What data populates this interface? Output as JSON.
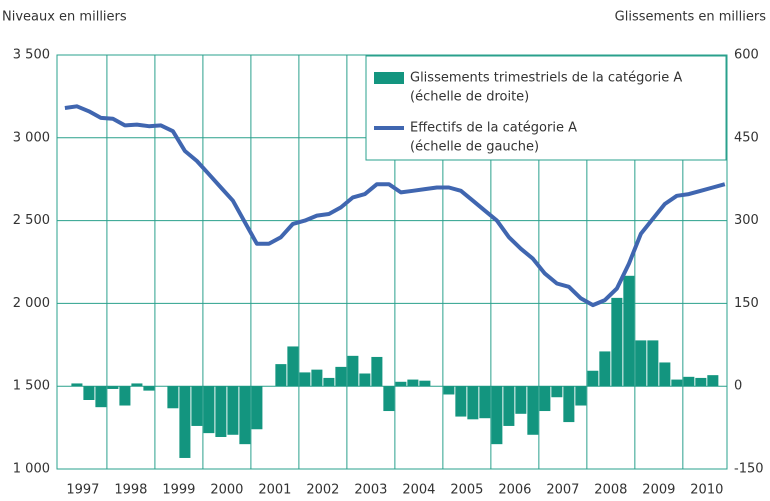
{
  "chart_data": {
    "type": "bar_line",
    "left_axis_label": "Niveaux en milliers",
    "right_axis_label": "Glissements en milliers",
    "xlim": [
      1996.96,
      2010.92
    ],
    "xticks": [
      1997,
      1998,
      1999,
      2000,
      2001,
      2002,
      2003,
      2004,
      2005,
      2006,
      2007,
      2008,
      2009,
      2010
    ],
    "ylim": [
      1000,
      3500
    ],
    "yticks": [
      {
        "value": 1000,
        "label": "1 000"
      },
      {
        "value": 1500,
        "label": "1 500"
      },
      {
        "value": 2000,
        "label": "2 000"
      },
      {
        "value": 2500,
        "label": "2 500"
      },
      {
        "value": 3000,
        "label": "3 000"
      },
      {
        "value": 3500,
        "label": "3 500"
      }
    ],
    "y2lim": [
      -150,
      600
    ],
    "y2ticks": [
      -150,
      0,
      150,
      300,
      450,
      600
    ],
    "grid": true,
    "legend": "top-right",
    "series": [
      {
        "name": "Glissements trimestriels de la catégorie A",
        "axis_note": "(échelle de droite)",
        "kind": "bar",
        "axis": "y2",
        "color": "#13957f",
        "x": [
          1997.375,
          1997.625,
          1997.875,
          1998.125,
          1998.375,
          1998.625,
          1998.875,
          1999.125,
          1999.375,
          1999.625,
          1999.875,
          2000.125,
          2000.375,
          2000.625,
          2000.875,
          2001.125,
          2001.375,
          2001.625,
          2001.875,
          2002.125,
          2002.375,
          2002.625,
          2002.875,
          2003.125,
          2003.375,
          2003.625,
          2003.875,
          2004.125,
          2004.375,
          2004.625,
          2004.875,
          2005.125,
          2005.375,
          2005.625,
          2005.875,
          2006.125,
          2006.375,
          2006.625,
          2006.875,
          2007.125,
          2007.375,
          2007.625,
          2007.875,
          2008.125,
          2008.375,
          2008.625,
          2008.875,
          2009.125,
          2009.375,
          2009.625,
          2009.875,
          2010.125,
          2010.375,
          2010.625
        ],
        "values": [
          5,
          -25,
          -38,
          -5,
          -35,
          5,
          -8,
          0,
          -40,
          -130,
          -72,
          -85,
          -92,
          -88,
          -105,
          -78,
          0,
          40,
          72,
          25,
          30,
          15,
          35,
          55,
          23,
          53,
          -45,
          8,
          12,
          10,
          0,
          -15,
          -55,
          -60,
          -58,
          -105,
          -72,
          -50,
          -88,
          -45,
          -20,
          -65,
          -35,
          28,
          63,
          160,
          200,
          83,
          83,
          43,
          12,
          17,
          15,
          20
        ]
      },
      {
        "name": "Effectifs de la catégorie A",
        "axis_note": "(échelle de gauche)",
        "kind": "line",
        "color": "#4066b0",
        "x": [
          1997.125,
          1997.375,
          1997.625,
          1997.875,
          1998.125,
          1998.375,
          1998.625,
          1998.875,
          1999.125,
          1999.375,
          1999.625,
          1999.875,
          2000.125,
          2000.375,
          2000.625,
          2000.875,
          2001.125,
          2001.375,
          2001.625,
          2001.875,
          2002.125,
          2002.375,
          2002.625,
          2002.875,
          2003.125,
          2003.375,
          2003.625,
          2003.875,
          2004.125,
          2004.375,
          2004.625,
          2004.875,
          2005.125,
          2005.375,
          2005.625,
          2005.875,
          2006.125,
          2006.375,
          2006.625,
          2006.875,
          2007.125,
          2007.375,
          2007.625,
          2007.875,
          2008.125,
          2008.375,
          2008.625,
          2008.875,
          2009.125,
          2009.375,
          2009.625,
          2009.875,
          2010.125,
          2010.375,
          2010.625,
          2010.875
        ],
        "values": [
          3180,
          3190,
          3160,
          3120,
          3115,
          3075,
          3080,
          3070,
          3075,
          3040,
          2920,
          2860,
          2780,
          2700,
          2620,
          2490,
          2360,
          2360,
          2400,
          2480,
          2500,
          2530,
          2540,
          2580,
          2640,
          2660,
          2720,
          2720,
          2670,
          2680,
          2690,
          2700,
          2700,
          2680,
          2620,
          2560,
          2500,
          2400,
          2330,
          2270,
          2180,
          2120,
          2100,
          2030,
          1990,
          2020,
          2090,
          2240,
          2420,
          2510,
          2600,
          2650,
          2660,
          2680,
          2700,
          2720
        ]
      }
    ]
  }
}
